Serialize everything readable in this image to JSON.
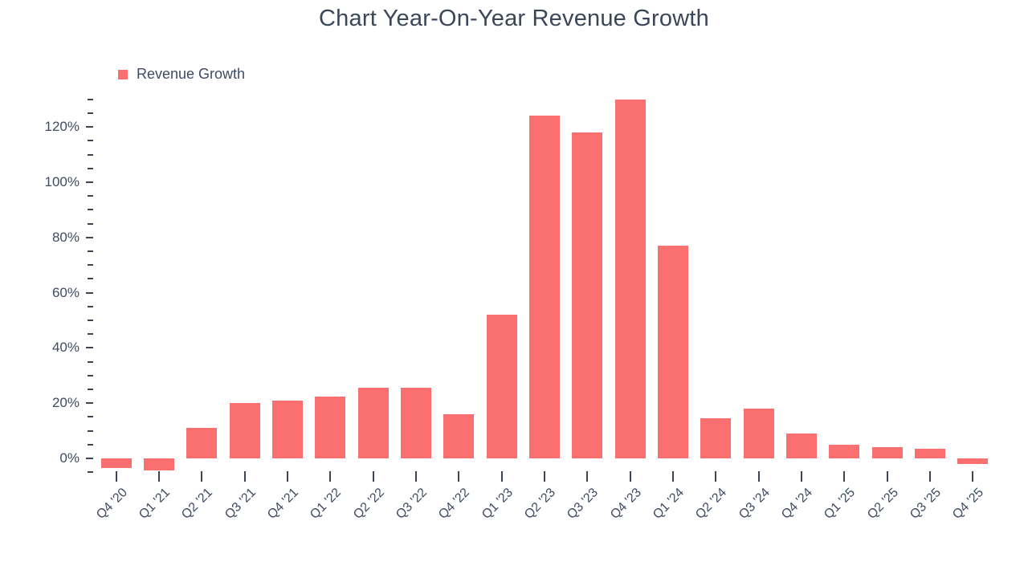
{
  "title": "Chart Year-On-Year Revenue Growth",
  "legend": {
    "label": "Revenue Growth"
  },
  "chart_data": {
    "type": "bar",
    "title": "Chart Year-On-Year Revenue Growth",
    "series_name": "Revenue Growth",
    "categories": [
      "Q4 '20",
      "Q1 '21",
      "Q2 '21",
      "Q3 '21",
      "Q4 '21",
      "Q1 '22",
      "Q2 '22",
      "Q3 '22",
      "Q4 '22",
      "Q1 '23",
      "Q2 '23",
      "Q3 '23",
      "Q4 '23",
      "Q1 '24",
      "Q2 '24",
      "Q3 '24",
      "Q4 '24",
      "Q1 '25",
      "Q2 '25",
      "Q3 '25",
      "Q4 '25"
    ],
    "values": [
      -3.5,
      -4.5,
      11,
      20,
      21,
      22.5,
      25.5,
      25.5,
      16,
      52,
      124,
      118,
      130,
      77,
      14.5,
      18,
      9,
      5,
      4,
      3.5,
      -2
    ],
    "unit": "%",
    "xlabel": "",
    "ylabel": "",
    "ylim": [
      -9,
      134
    ],
    "y_major_ticks": [
      0,
      20,
      40,
      60,
      80,
      100,
      120
    ],
    "y_tick_labels": [
      "0%",
      "20%",
      "40%",
      "60%",
      "80%",
      "100%",
      "120%"
    ],
    "y_minor_ticks": [
      -5,
      5,
      10,
      15,
      25,
      30,
      35,
      45,
      50,
      55,
      65,
      70,
      75,
      85,
      90,
      95,
      105,
      110,
      115,
      125,
      130
    ],
    "bar_color": "#FA6F6F",
    "grid": false,
    "legend_position": "top-left"
  },
  "colors": {
    "bar": "#FA6F6F",
    "title_text": "#3B4759",
    "axis_text": "#3F4B63",
    "tick": "#3A4454",
    "background": "#FFFFFF"
  }
}
